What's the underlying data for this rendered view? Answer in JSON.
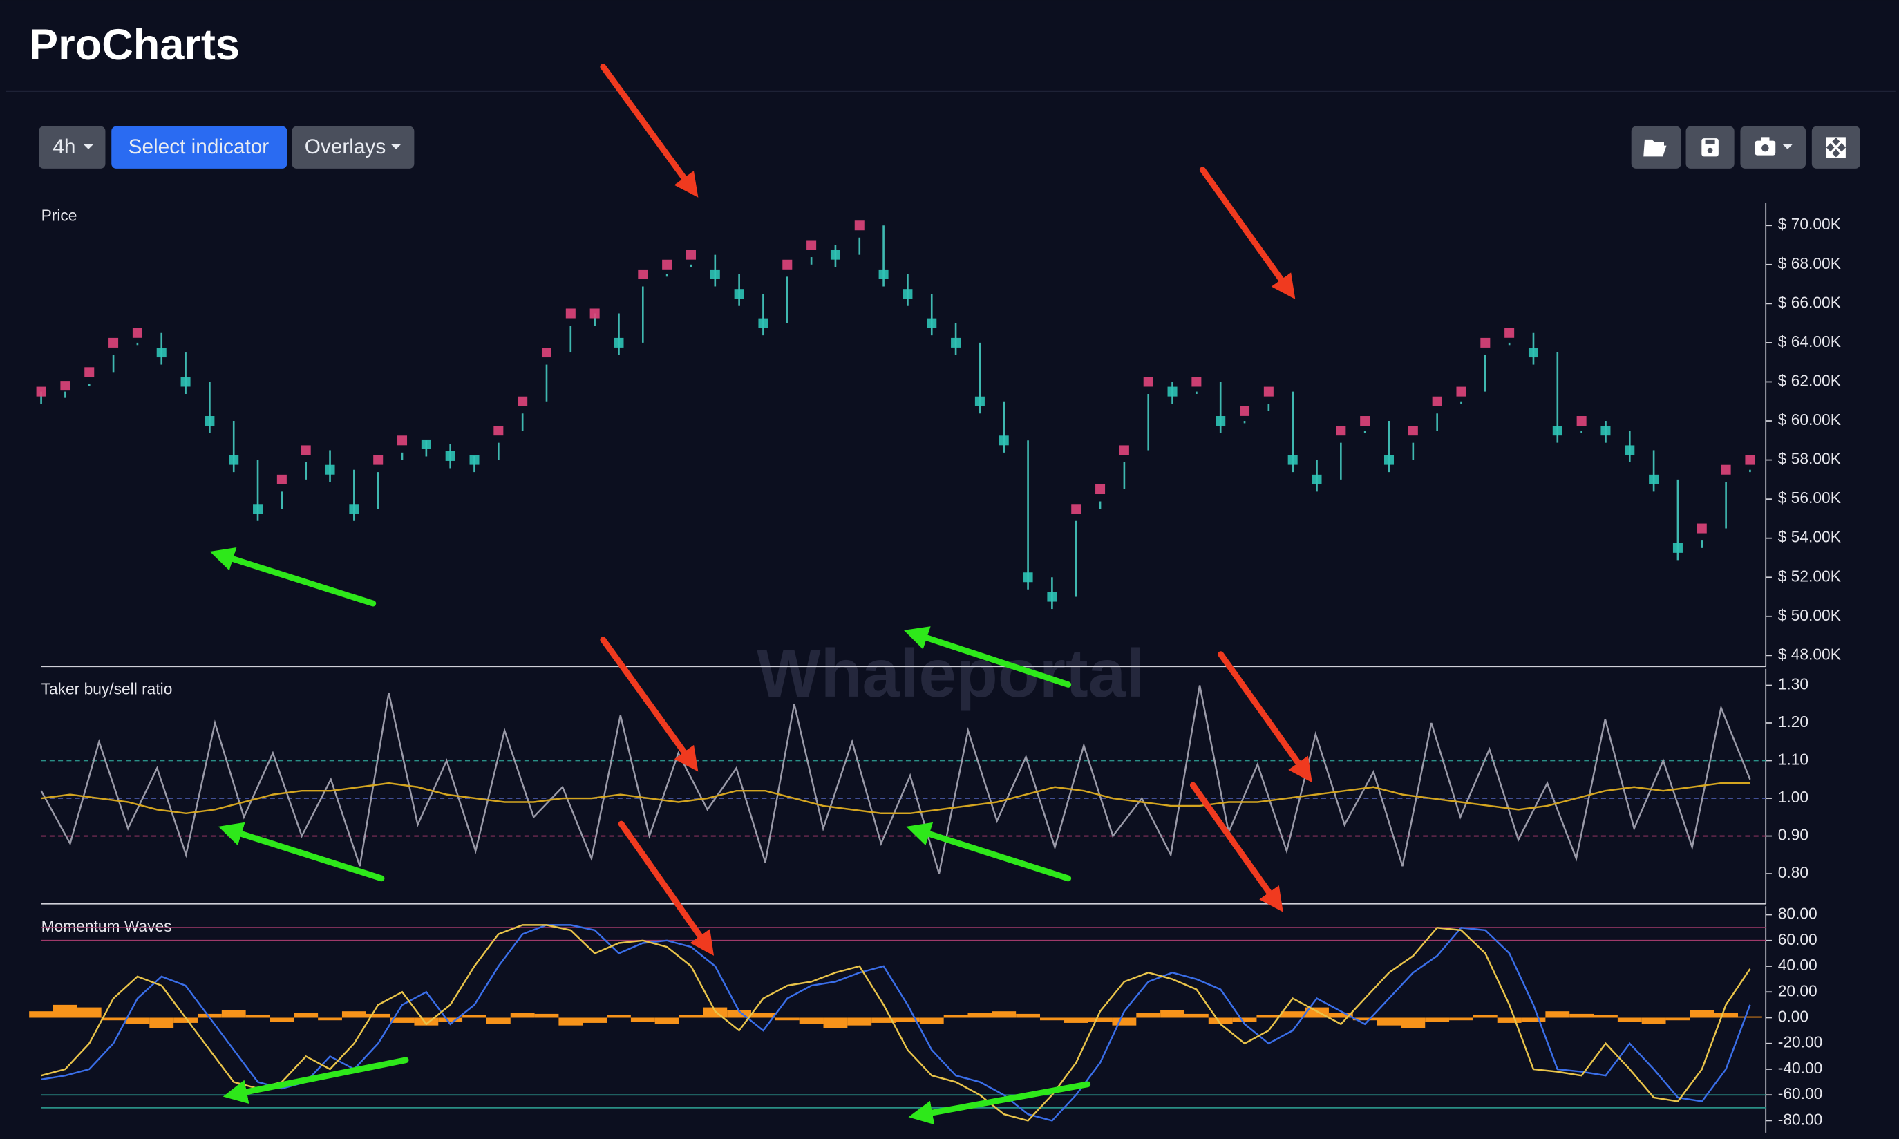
{
  "header": {
    "title": "ProCharts"
  },
  "toolbar": {
    "timeframe": "4h",
    "indicator": "Select indicator",
    "overlays": "Overlays"
  },
  "watermark": "Whaleportal",
  "chart_data": [
    {
      "type": "dot",
      "title": "Price",
      "up_color": "#e0457b",
      "down_color": "#2ec4b6",
      "wick_color": "#3fb8b0",
      "values": [
        61500,
        61800,
        62500,
        64000,
        64500,
        63500,
        62000,
        60000,
        58000,
        55500,
        57000,
        58500,
        57500,
        55500,
        58000,
        59000,
        58800,
        58200,
        58000,
        59500,
        61000,
        63500,
        65500,
        65500,
        64000,
        67500,
        68000,
        68500,
        67500,
        66500,
        65000,
        68000,
        69000,
        68500,
        70000,
        67500,
        66500,
        65000,
        64000,
        61000,
        59000,
        52000,
        51000,
        55500,
        56500,
        58500,
        62000,
        61500,
        62000,
        60000,
        60500,
        61500,
        58000,
        57000,
        59500,
        60000,
        58000,
        59500,
        61000,
        61500,
        64000,
        64500,
        63500,
        59500,
        60000,
        59500,
        58500,
        57000,
        53500,
        54500,
        57500,
        58000
      ],
      "ylim": [
        47440,
        71300
      ],
      "yticks": [
        {
          "value": 48000,
          "label": "$ 48.00K"
        },
        {
          "value": 50000,
          "label": "$ 50.00K"
        },
        {
          "value": 52000,
          "label": "$ 52.00K"
        },
        {
          "value": 54000,
          "label": "$ 54.00K"
        },
        {
          "value": 56000,
          "label": "$ 56.00K"
        },
        {
          "value": 58000,
          "label": "$ 58.00K"
        },
        {
          "value": 60000,
          "label": "$ 60.00K"
        },
        {
          "value": 62000,
          "label": "$ 62.00K"
        },
        {
          "value": 64000,
          "label": "$ 64.00K"
        },
        {
          "value": 66000,
          "label": "$ 66.00K"
        },
        {
          "value": 68000,
          "label": "$ 68.00K"
        },
        {
          "value": 70000,
          "label": "$ 70.00K"
        }
      ]
    },
    {
      "type": "line",
      "title": "Taker buy/sell ratio",
      "series": [
        {
          "color": "#9a9aa8",
          "values": [
            1.02,
            0.88,
            1.15,
            0.92,
            1.08,
            0.85,
            1.2,
            0.95,
            1.12,
            0.9,
            1.05,
            0.82,
            1.28,
            0.93,
            1.1,
            0.86,
            1.18,
            0.95,
            1.03,
            0.84,
            1.22,
            0.9,
            1.12,
            0.97,
            1.08,
            0.83,
            1.25,
            0.92,
            1.15,
            0.88,
            1.06,
            0.8,
            1.18,
            0.94,
            1.11,
            0.87,
            1.14,
            0.9,
            1.0,
            0.85,
            1.3,
            0.91,
            1.09,
            0.86,
            1.17,
            0.93,
            1.07,
            0.82,
            1.2,
            0.95,
            1.13,
            0.89,
            1.04,
            0.84,
            1.21,
            0.92,
            1.1,
            0.87,
            1.24,
            1.05
          ]
        },
        {
          "color": "#d4a520",
          "values": [
            1.0,
            1.01,
            1.0,
            0.99,
            0.97,
            0.96,
            0.97,
            0.99,
            1.01,
            1.02,
            1.02,
            1.03,
            1.04,
            1.03,
            1.01,
            1.0,
            0.99,
            0.99,
            1.0,
            1.0,
            1.01,
            1.0,
            0.99,
            1.0,
            1.02,
            1.02,
            1.0,
            0.98,
            0.97,
            0.96,
            0.96,
            0.97,
            0.98,
            0.99,
            1.01,
            1.03,
            1.02,
            1.0,
            0.99,
            0.98,
            0.98,
            0.99,
            0.99,
            1.0,
            1.01,
            1.02,
            1.03,
            1.01,
            1.0,
            0.99,
            0.98,
            0.97,
            0.98,
            1.0,
            1.02,
            1.03,
            1.02,
            1.03,
            1.04,
            1.04
          ]
        }
      ],
      "hlines": [
        {
          "value": 1.1,
          "color": "#2a8f86"
        },
        {
          "value": 1.0,
          "color": "#4a5aa8"
        },
        {
          "value": 0.9,
          "color": "#a03a6a"
        }
      ],
      "ylim": [
        0.72,
        1.35
      ],
      "yticks": [
        {
          "value": 0.8,
          "label": "0.80"
        },
        {
          "value": 0.9,
          "label": "0.90"
        },
        {
          "value": 1.0,
          "label": "1.00"
        },
        {
          "value": 1.1,
          "label": "1.10"
        },
        {
          "value": 1.2,
          "label": "1.20"
        },
        {
          "value": 1.3,
          "label": "1.30"
        }
      ]
    },
    {
      "type": "line",
      "title": "Momentum Waves",
      "series": [
        {
          "type": "bar",
          "color": "#f7931a",
          "values": [
            5,
            10,
            8,
            -2,
            -5,
            -8,
            -4,
            3,
            6,
            2,
            -3,
            4,
            -2,
            5,
            3,
            -4,
            -6,
            -3,
            2,
            -5,
            4,
            3,
            -6,
            -4,
            2,
            -3,
            -5,
            2,
            8,
            6,
            4,
            -2,
            -5,
            -8,
            -6,
            -4,
            -3,
            -5,
            2,
            4,
            5,
            3,
            -2,
            -4,
            -3,
            -6,
            4,
            6,
            3,
            -5,
            -3,
            2,
            5,
            8,
            4,
            -2,
            -6,
            -8,
            -3,
            -2,
            2,
            -4,
            -3,
            5,
            3,
            2,
            -3,
            -5,
            -2,
            6,
            4,
            1
          ]
        },
        {
          "color": "#3a6ee8",
          "values": [
            -48,
            -45,
            -40,
            -20,
            15,
            32,
            25,
            0,
            -25,
            -50,
            -55,
            -50,
            -30,
            -40,
            -20,
            10,
            20,
            -5,
            10,
            40,
            65,
            72,
            72,
            68,
            50,
            58,
            60,
            55,
            40,
            5,
            -10,
            15,
            25,
            28,
            35,
            40,
            10,
            -25,
            -45,
            -50,
            -60,
            -75,
            -80,
            -60,
            -35,
            5,
            28,
            35,
            30,
            22,
            -5,
            -20,
            -10,
            15,
            5,
            -5,
            15,
            35,
            48,
            70,
            68,
            50,
            10,
            -40,
            -42,
            -45,
            -20,
            -40,
            -62,
            -65,
            -40,
            10
          ]
        },
        {
          "color": "#e8c34a",
          "values": [
            -45,
            -40,
            -20,
            15,
            32,
            25,
            0,
            -25,
            -50,
            -55,
            -50,
            -30,
            -40,
            -20,
            10,
            20,
            -5,
            10,
            40,
            65,
            72,
            72,
            68,
            50,
            58,
            60,
            55,
            40,
            5,
            -10,
            15,
            25,
            28,
            35,
            40,
            10,
            -25,
            -45,
            -50,
            -60,
            -75,
            -80,
            -60,
            -35,
            5,
            28,
            35,
            30,
            22,
            -5,
            -20,
            -10,
            15,
            5,
            -5,
            15,
            35,
            48,
            70,
            68,
            50,
            10,
            -40,
            -42,
            -45,
            -20,
            -40,
            -62,
            -65,
            -40,
            10,
            38
          ]
        }
      ],
      "hlines": [
        {
          "value": 70,
          "color": "#a03a6a"
        },
        {
          "value": 60,
          "color": "#a03a6a"
        },
        {
          "value": -60,
          "color": "#2a8f86"
        },
        {
          "value": -70,
          "color": "#2a8f86"
        }
      ],
      "ylim": [
        -89.4,
        88.5
      ],
      "yticks": [
        {
          "value": -80,
          "label": "-80.00"
        },
        {
          "value": -60,
          "label": "-60.00"
        },
        {
          "value": -40,
          "label": "-40.00"
        },
        {
          "value": -20,
          "label": "-20.00"
        },
        {
          "value": 0,
          "label": "0.00"
        },
        {
          "value": 20,
          "label": "20.00"
        },
        {
          "value": 40,
          "label": "40.00"
        },
        {
          "value": 60,
          "label": "60.00"
        },
        {
          "value": 80,
          "label": "80.00"
        }
      ]
    }
  ]
}
